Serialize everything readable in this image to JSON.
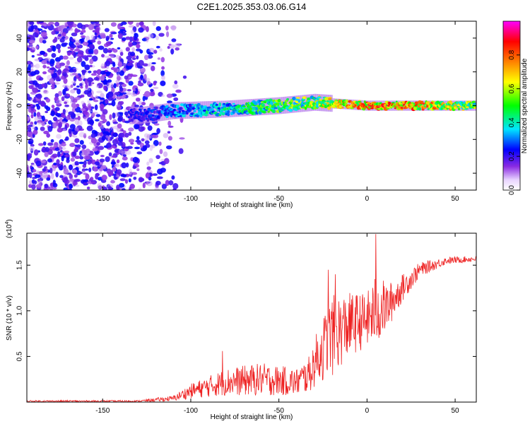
{
  "title": "C2E1.2025.353.03.06.G14",
  "colors": {
    "snr_line": "#ee2222",
    "axis": "#000000",
    "background": "#ffffff"
  },
  "chart_data": [
    {
      "type": "heatmap",
      "name": "spectrogram",
      "xlabel": "Height of straight line (km)",
      "ylabel": "Frequency (Hz)",
      "xlim": [
        -193,
        62
      ],
      "ylim": [
        -50,
        50
      ],
      "xticks": [
        -150,
        -100,
        -50,
        0,
        50
      ],
      "yticks": [
        -40,
        -20,
        0,
        20,
        40
      ],
      "colorbar": {
        "label": "Normalized spectral amplitude",
        "range": [
          0.0,
          1.0
        ],
        "ticks": [
          0.0,
          0.2,
          0.4,
          0.6,
          0.8
        ],
        "colormap": [
          "#ffffff",
          "#8a2be2",
          "#0000ff",
          "#00e5ff",
          "#00ff00",
          "#ffff00",
          "#ff8000",
          "#ff0000",
          "#ff00ff"
        ]
      },
      "ridge": [
        {
          "x": -130,
          "freq": -6,
          "amp": 0.25
        },
        {
          "x": -110,
          "freq": -3,
          "amp": 0.35
        },
        {
          "x": -80,
          "freq": -2,
          "amp": 0.45
        },
        {
          "x": -50,
          "freq": 0,
          "amp": 0.55
        },
        {
          "x": -30,
          "freq": 2,
          "amp": 0.6
        },
        {
          "x": -15,
          "freq": 1,
          "amp": 0.75
        },
        {
          "x": 0,
          "freq": 0,
          "amp": 0.85
        },
        {
          "x": 30,
          "freq": 0,
          "amp": 0.8
        },
        {
          "x": 62,
          "freq": 0,
          "amp": 0.6
        }
      ]
    },
    {
      "type": "line",
      "name": "snr",
      "xlabel": "Height of straight line (km)",
      "ylabel": "SNR (10 * v/v)",
      "scale_label": "(x10",
      "scale_exponent": "4",
      "xlim": [
        -193,
        62
      ],
      "ylim": [
        0,
        1.85
      ],
      "xticks": [
        -150,
        -100,
        -50,
        0,
        50
      ],
      "yticks": [
        "0.5",
        "1.0",
        "1.5"
      ],
      "envelope": [
        {
          "x": -193,
          "mean": 0.01,
          "spread": 0.01
        },
        {
          "x": -130,
          "mean": 0.01,
          "spread": 0.01
        },
        {
          "x": -110,
          "mean": 0.04,
          "spread": 0.03
        },
        {
          "x": -100,
          "mean": 0.12,
          "spread": 0.08
        },
        {
          "x": -80,
          "mean": 0.22,
          "spread": 0.15
        },
        {
          "x": -60,
          "mean": 0.25,
          "spread": 0.18
        },
        {
          "x": -40,
          "mean": 0.22,
          "spread": 0.15
        },
        {
          "x": -33,
          "mean": 0.3,
          "spread": 0.2
        },
        {
          "x": -28,
          "mean": 0.5,
          "spread": 0.3
        },
        {
          "x": -20,
          "mean": 0.72,
          "spread": 0.45
        },
        {
          "x": -10,
          "mean": 0.85,
          "spread": 0.35
        },
        {
          "x": 0,
          "mean": 0.9,
          "spread": 0.3
        },
        {
          "x": 5,
          "mean": 1.0,
          "spread": 0.4
        },
        {
          "x": 12,
          "mean": 1.05,
          "spread": 0.25
        },
        {
          "x": 20,
          "mean": 1.25,
          "spread": 0.15
        },
        {
          "x": 30,
          "mean": 1.45,
          "spread": 0.08
        },
        {
          "x": 45,
          "mean": 1.55,
          "spread": 0.04
        },
        {
          "x": 62,
          "mean": 1.57,
          "spread": 0.03
        }
      ],
      "peaks": [
        {
          "x": 5,
          "y": 1.84
        },
        {
          "x": -22,
          "y": 1.45
        },
        {
          "x": -18,
          "y": 1.4
        },
        {
          "x": -82,
          "y": 0.56
        }
      ]
    }
  ]
}
